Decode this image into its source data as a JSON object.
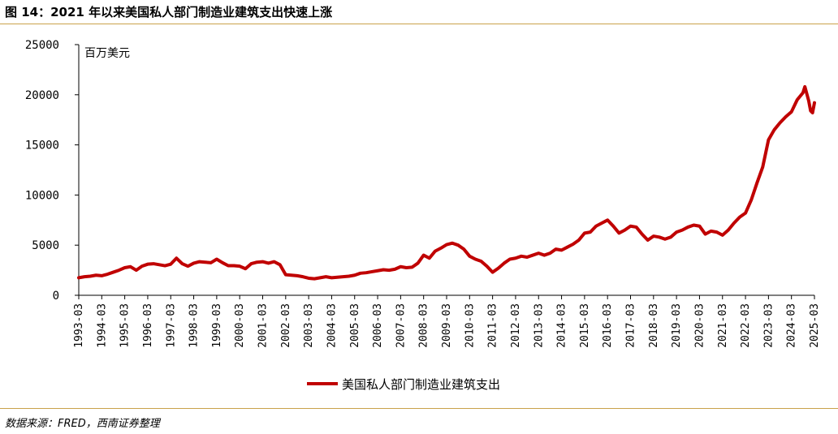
{
  "figure_title": "图 14：2021 年以来美国私人部门制造业建筑支出快速上涨",
  "source": "数据来源：FRED，西南证券整理",
  "colors": {
    "line": "#c00000",
    "rule": "#c9a24a",
    "axis": "#000000"
  },
  "chart_data": {
    "type": "line",
    "title": "",
    "unit_label": "百万美元",
    "ylim": [
      0,
      25000
    ],
    "yticks": [
      "0",
      "5000",
      "10000",
      "15000",
      "20000",
      "25000"
    ],
    "xlim": [
      "1993-03",
      "2025-03"
    ],
    "xticks": [
      "1993-03",
      "1994-03",
      "1995-03",
      "1996-03",
      "1997-03",
      "1998-03",
      "1999-03",
      "2000-03",
      "2001-03",
      "2002-03",
      "2003-03",
      "2004-03",
      "2005-03",
      "2006-03",
      "2007-03",
      "2008-03",
      "2009-03",
      "2010-03",
      "2011-03",
      "2012-03",
      "2013-03",
      "2014-03",
      "2015-03",
      "2016-03",
      "2017-03",
      "2018-03",
      "2019-03",
      "2020-03",
      "2021-03",
      "2022-03",
      "2023-03",
      "2024-03",
      "2025-03"
    ],
    "grid": false,
    "legend_position": "bottom",
    "series": [
      {
        "name": "美国私人部门制造业建筑支出",
        "points": [
          [
            "1993-03",
            1750
          ],
          [
            "1993-06",
            1850
          ],
          [
            "1993-09",
            1900
          ],
          [
            "1993-12",
            2000
          ],
          [
            "1994-03",
            1950
          ],
          [
            "1994-06",
            2100
          ],
          [
            "1994-09",
            2300
          ],
          [
            "1994-12",
            2500
          ],
          [
            "1995-03",
            2750
          ],
          [
            "1995-06",
            2850
          ],
          [
            "1995-09",
            2500
          ],
          [
            "1995-12",
            2900
          ],
          [
            "1996-03",
            3100
          ],
          [
            "1996-06",
            3150
          ],
          [
            "1996-09",
            3050
          ],
          [
            "1996-12",
            2950
          ],
          [
            "1997-03",
            3100
          ],
          [
            "1997-06",
            3700
          ],
          [
            "1997-09",
            3150
          ],
          [
            "1997-12",
            2900
          ],
          [
            "1998-03",
            3200
          ],
          [
            "1998-06",
            3350
          ],
          [
            "1998-09",
            3300
          ],
          [
            "1998-12",
            3250
          ],
          [
            "1999-03",
            3600
          ],
          [
            "1999-06",
            3250
          ],
          [
            "1999-09",
            2950
          ],
          [
            "1999-12",
            2950
          ],
          [
            "2000-03",
            2900
          ],
          [
            "2000-06",
            2650
          ],
          [
            "2000-09",
            3150
          ],
          [
            "2000-12",
            3300
          ],
          [
            "2001-03",
            3350
          ],
          [
            "2001-06",
            3200
          ],
          [
            "2001-09",
            3350
          ],
          [
            "2001-12",
            3050
          ],
          [
            "2002-03",
            2050
          ],
          [
            "2002-06",
            2000
          ],
          [
            "2002-09",
            1950
          ],
          [
            "2002-12",
            1850
          ],
          [
            "2003-03",
            1700
          ],
          [
            "2003-06",
            1650
          ],
          [
            "2003-09",
            1750
          ],
          [
            "2003-12",
            1850
          ],
          [
            "2004-03",
            1750
          ],
          [
            "2004-06",
            1800
          ],
          [
            "2004-09",
            1850
          ],
          [
            "2004-12",
            1900
          ],
          [
            "2005-03",
            2000
          ],
          [
            "2005-06",
            2200
          ],
          [
            "2005-09",
            2250
          ],
          [
            "2005-12",
            2350
          ],
          [
            "2006-03",
            2450
          ],
          [
            "2006-06",
            2550
          ],
          [
            "2006-09",
            2500
          ],
          [
            "2006-12",
            2600
          ],
          [
            "2007-03",
            2850
          ],
          [
            "2007-06",
            2750
          ],
          [
            "2007-09",
            2800
          ],
          [
            "2007-12",
            3200
          ],
          [
            "2008-03",
            4000
          ],
          [
            "2008-06",
            3700
          ],
          [
            "2008-09",
            4400
          ],
          [
            "2008-12",
            4700
          ],
          [
            "2009-03",
            5050
          ],
          [
            "2009-06",
            5200
          ],
          [
            "2009-09",
            5000
          ],
          [
            "2009-12",
            4600
          ],
          [
            "2010-03",
            3900
          ],
          [
            "2010-06",
            3600
          ],
          [
            "2010-09",
            3400
          ],
          [
            "2010-12",
            2900
          ],
          [
            "2011-03",
            2300
          ],
          [
            "2011-06",
            2700
          ],
          [
            "2011-09",
            3200
          ],
          [
            "2011-12",
            3600
          ],
          [
            "2012-03",
            3700
          ],
          [
            "2012-06",
            3900
          ],
          [
            "2012-09",
            3800
          ],
          [
            "2012-12",
            4000
          ],
          [
            "2013-03",
            4200
          ],
          [
            "2013-06",
            4000
          ],
          [
            "2013-09",
            4200
          ],
          [
            "2013-12",
            4600
          ],
          [
            "2014-03",
            4500
          ],
          [
            "2014-06",
            4800
          ],
          [
            "2014-09",
            5100
          ],
          [
            "2014-12",
            5500
          ],
          [
            "2015-03",
            6200
          ],
          [
            "2015-06",
            6300
          ],
          [
            "2015-09",
            6900
          ],
          [
            "2015-12",
            7200
          ],
          [
            "2016-03",
            7500
          ],
          [
            "2016-06",
            6900
          ],
          [
            "2016-09",
            6200
          ],
          [
            "2016-12",
            6500
          ],
          [
            "2017-03",
            6900
          ],
          [
            "2017-06",
            6800
          ],
          [
            "2017-09",
            6100
          ],
          [
            "2017-12",
            5500
          ],
          [
            "2018-03",
            5900
          ],
          [
            "2018-06",
            5800
          ],
          [
            "2018-09",
            5600
          ],
          [
            "2018-12",
            5800
          ],
          [
            "2019-03",
            6300
          ],
          [
            "2019-06",
            6500
          ],
          [
            "2019-09",
            6800
          ],
          [
            "2019-12",
            7000
          ],
          [
            "2020-03",
            6900
          ],
          [
            "2020-06",
            6100
          ],
          [
            "2020-09",
            6400
          ],
          [
            "2020-12",
            6300
          ],
          [
            "2021-03",
            6000
          ],
          [
            "2021-06",
            6500
          ],
          [
            "2021-09",
            7200
          ],
          [
            "2021-12",
            7800
          ],
          [
            "2022-03",
            8200
          ],
          [
            "2022-06",
            9500
          ],
          [
            "2022-09",
            11200
          ],
          [
            "2022-12",
            12800
          ],
          [
            "2023-03",
            15500
          ],
          [
            "2023-06",
            16500
          ],
          [
            "2023-09",
            17200
          ],
          [
            "2023-12",
            17800
          ],
          [
            "2024-03",
            18300
          ],
          [
            "2024-06",
            19500
          ],
          [
            "2024-09",
            20200
          ],
          [
            "2024-10",
            20800
          ],
          [
            "2024-12",
            19400
          ],
          [
            "2025-01",
            18400
          ],
          [
            "2025-02",
            18200
          ],
          [
            "2025-03",
            19200
          ]
        ]
      }
    ]
  }
}
